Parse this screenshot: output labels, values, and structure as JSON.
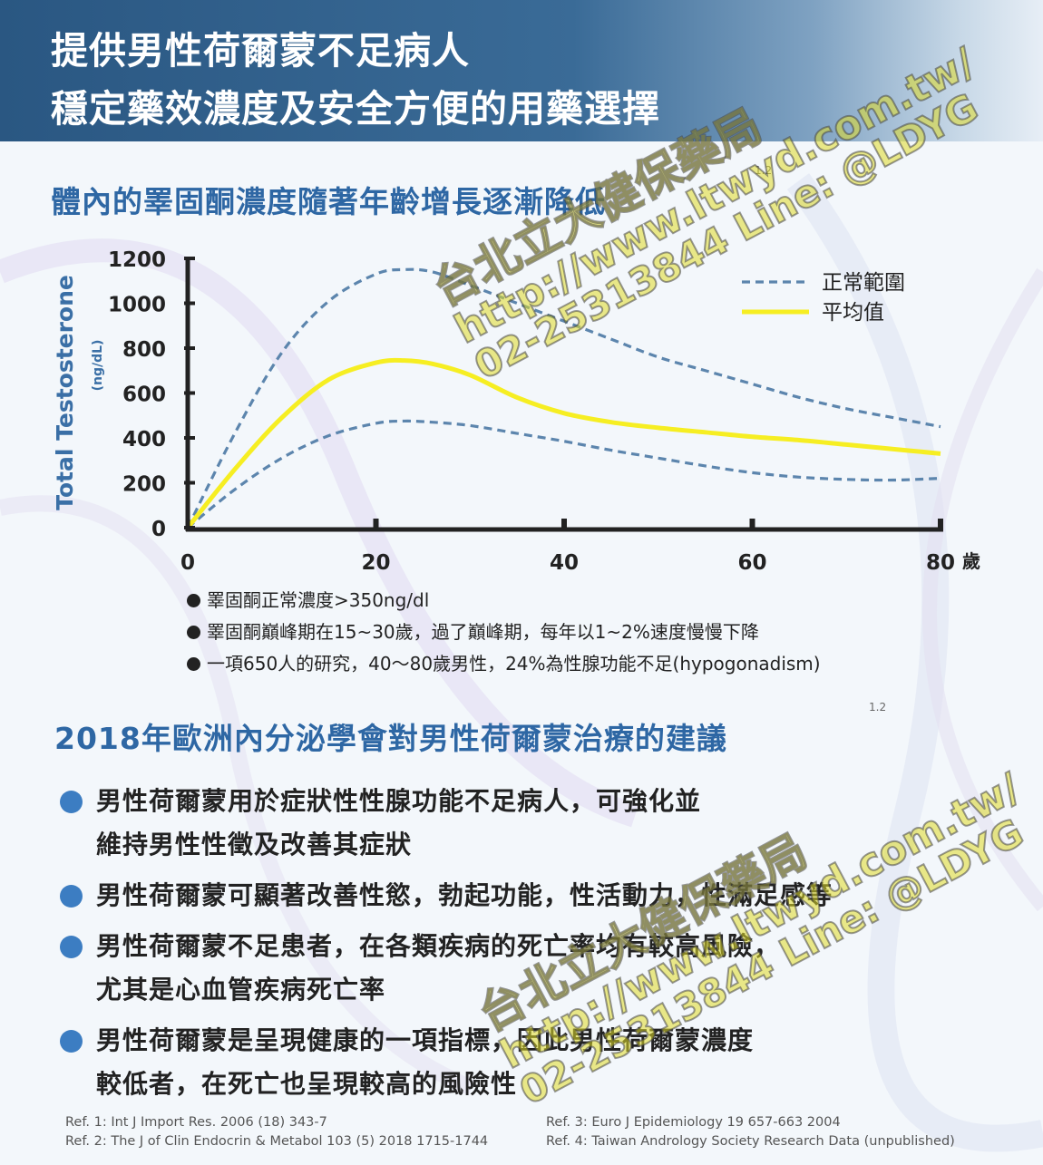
{
  "header": {
    "line1": "提供男性荷爾蒙不足病人",
    "line2": "穩定藥效濃度及安全方便的用藥選擇"
  },
  "section1": {
    "title": "體內的睪固酮濃度隨著年齡增長逐漸降低",
    "sup": "1.2"
  },
  "chart_data": {
    "type": "line",
    "ylabel": "Total Testosterone",
    "yunit": "(ng/dL)",
    "ylim": [
      0,
      1200
    ],
    "xlim": [
      0,
      80
    ],
    "yticks": [
      "0",
      "200",
      "400",
      "600",
      "800",
      "1000",
      "1200"
    ],
    "xticks": [
      "0",
      "20",
      "40",
      "60",
      "80"
    ],
    "xunit": "歲",
    "legend_position": "top-right",
    "series": [
      {
        "name": "正常範圍",
        "style": "dashed",
        "color": "#5c85ad",
        "x": [
          0,
          5,
          10,
          15,
          20,
          23,
          26,
          30,
          35,
          40,
          45,
          50,
          55,
          60,
          65,
          70,
          75,
          80
        ],
        "y": [
          0,
          420,
          780,
          1010,
          1130,
          1150,
          1140,
          1080,
          1000,
          920,
          840,
          760,
          700,
          640,
          580,
          530,
          490,
          450
        ]
      },
      {
        "name": "",
        "style": "dashed",
        "color": "#5c85ad",
        "x": [
          0,
          5,
          10,
          15,
          20,
          23,
          26,
          30,
          35,
          40,
          45,
          50,
          55,
          60,
          65,
          70,
          75,
          80
        ],
        "y": [
          0,
          170,
          310,
          410,
          465,
          475,
          470,
          455,
          420,
          385,
          345,
          310,
          275,
          245,
          225,
          215,
          212,
          220
        ]
      },
      {
        "name": "平均值",
        "style": "solid",
        "color": "#f6ee22",
        "x": [
          0,
          5,
          10,
          15,
          20,
          23,
          26,
          30,
          35,
          40,
          45,
          50,
          55,
          60,
          65,
          70,
          75,
          80
        ],
        "y": [
          0,
          260,
          490,
          660,
          735,
          745,
          730,
          680,
          580,
          510,
          470,
          445,
          425,
          405,
          390,
          370,
          350,
          330
        ]
      }
    ]
  },
  "notes": [
    "睪固酮正常濃度>350ng/dl",
    "睪固酮巔峰期在15~30歲，過了巔峰期，每年以1~2%速度慢慢下降",
    "一項650人的研究，40～80歲男性，24%為性腺功能不足(hypogonadism)"
  ],
  "section2": {
    "title": "2018年歐洲內分泌學會對男性荷爾蒙治療的建議",
    "sup": "1.2"
  },
  "recommendations": [
    {
      "lines": [
        "男性荷爾蒙用於症狀性性腺功能不足病人，可強化並",
        "維持男性性徵及改善其症狀"
      ]
    },
    {
      "lines": [
        "男性荷爾蒙可顯著改善性慾，勃起功能，性活動力，性滿足感等"
      ]
    },
    {
      "lines": [
        "男性荷爾蒙不足患者，在各類疾病的死亡率均有較高風險，",
        "尤其是心血管疾病死亡率"
      ]
    },
    {
      "lines": [
        "男性荷爾蒙是呈現健康的一項指標，因此男性荷爾蒙濃度",
        "較低者，在死亡也呈現較高的風險性"
      ]
    }
  ],
  "refs_left": [
    "Ref. 1: Int J  Import Res. 2006 (18) 343-7",
    "Ref. 2: The J of Clin Endocrin & Metabol 103 (5) 2018 1715-1744"
  ],
  "refs_right": [
    "Ref. 3: Euro J Epidemiology 19 657-663 2004",
    "Ref. 4: Taiwan Andrology Society Research Data (unpublished)"
  ],
  "watermark": {
    "line1": "台北立大健保藥局",
    "line2": "http://www.ltwyd.com.tw/",
    "line3": "02-25313844 Line: @LDYG"
  }
}
